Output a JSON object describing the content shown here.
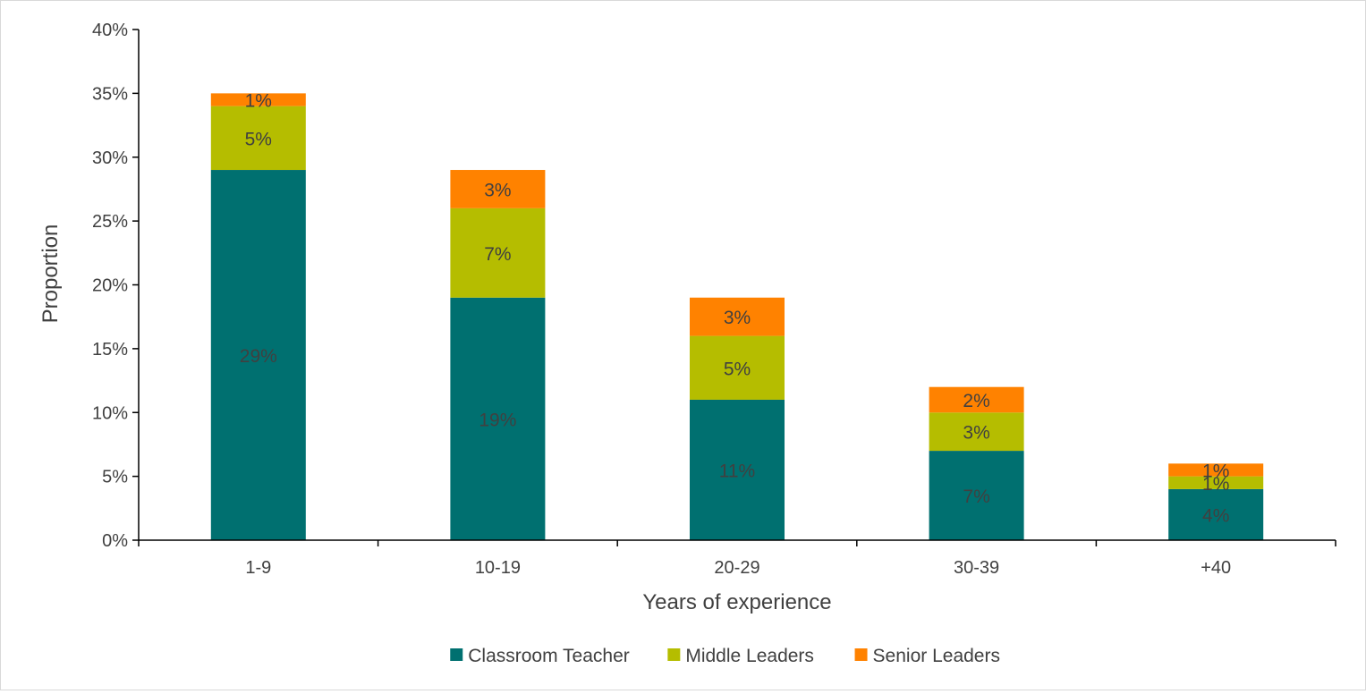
{
  "chart_data": {
    "type": "bar",
    "stacked": true,
    "title": "",
    "xlabel": "Years of experience",
    "ylabel": "Proportion",
    "ylim": [
      0,
      40
    ],
    "yticks": [
      "0%",
      "5%",
      "10%",
      "15%",
      "20%",
      "25%",
      "30%",
      "35%",
      "40%"
    ],
    "categories": [
      "1-9",
      "10-19",
      "20-29",
      "30-39",
      "+40"
    ],
    "series": [
      {
        "name": "Classroom Teacher",
        "color": "#007070",
        "values": [
          29,
          19,
          11,
          7,
          4
        ],
        "labels": [
          "29%",
          "19%",
          "11%",
          "7%",
          "4%"
        ]
      },
      {
        "name": "Middle Leaders",
        "color": "#b5bd00",
        "values": [
          5,
          7,
          5,
          3,
          1
        ],
        "labels": [
          "5%",
          "7%",
          "5%",
          "3%",
          "1%"
        ]
      },
      {
        "name": "Senior Leaders",
        "color": "#ff8200",
        "values": [
          1,
          3,
          3,
          2,
          1
        ],
        "labels": [
          "1%",
          "3%",
          "3%",
          "2%",
          "1%"
        ]
      }
    ],
    "legend_position": "bottom",
    "grid": false
  }
}
